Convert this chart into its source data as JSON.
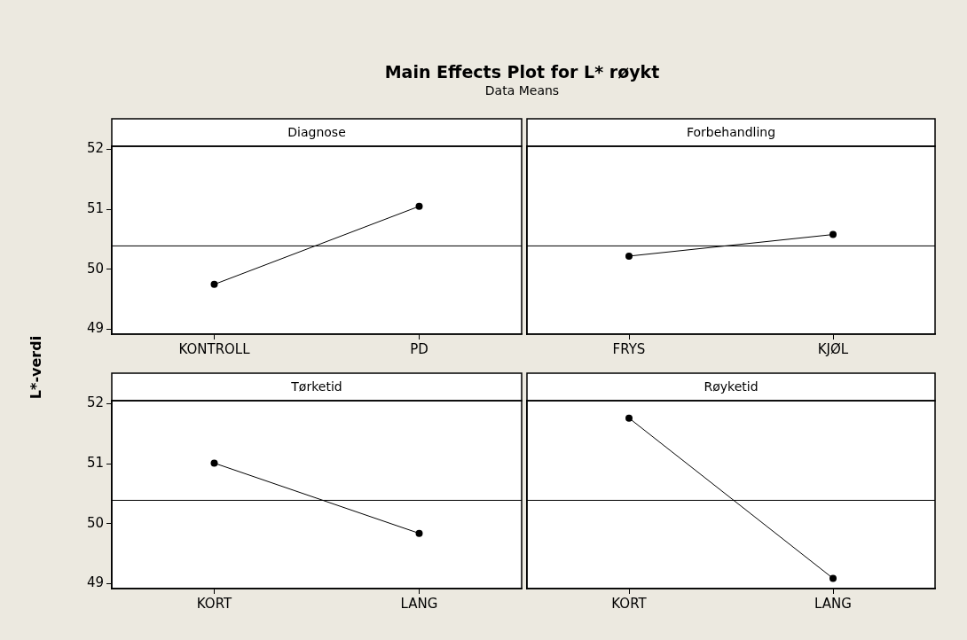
{
  "chart_data": [
    {
      "type": "other",
      "title": "Main Effects Plot for L* røykt",
      "subtitle": "Data Means"
    },
    {
      "type": "line",
      "title": "Diagnose",
      "ylabel": "L*-verdi",
      "categories": [
        "KONTROLL",
        "PD"
      ],
      "series": [
        {
          "color": "#000000",
          "values": [
            49.75,
            51.05
          ]
        }
      ],
      "ylim": [
        48.92,
        52.05
      ],
      "yticks": [
        49,
        50,
        51,
        52
      ],
      "marker": "circle",
      "line_style": "solid",
      "ref_lines": [
        {
          "axis": "y",
          "value": 50.39,
          "color": "#000000"
        }
      ]
    },
    {
      "type": "line",
      "title": "Forbehandling",
      "categories": [
        "FRYS",
        "KJØL"
      ],
      "series": [
        {
          "color": "#000000",
          "values": [
            50.22,
            50.58
          ]
        }
      ],
      "ylim": [
        48.92,
        52.05
      ],
      "yticks": [
        49,
        50,
        51,
        52
      ],
      "marker": "circle",
      "line_style": "solid",
      "tick_labels": "x",
      "ref_lines": [
        {
          "axis": "y",
          "value": 50.39,
          "color": "#000000"
        }
      ]
    },
    {
      "type": "line",
      "title": "Tørketid",
      "categories": [
        "KORT",
        "LANG"
      ],
      "series": [
        {
          "color": "#000000",
          "values": [
            51.01,
            49.84
          ]
        }
      ],
      "ylim": [
        48.92,
        52.05
      ],
      "yticks": [
        49,
        50,
        51,
        52
      ],
      "marker": "circle",
      "line_style": "solid",
      "ref_lines": [
        {
          "axis": "y",
          "value": 50.39,
          "color": "#000000"
        }
      ]
    },
    {
      "type": "line",
      "title": "Røyketid",
      "categories": [
        "KORT",
        "LANG"
      ],
      "series": [
        {
          "color": "#000000",
          "values": [
            51.76,
            49.09
          ]
        }
      ],
      "ylim": [
        48.92,
        52.05
      ],
      "yticks": [
        49,
        50,
        51,
        52
      ],
      "marker": "circle",
      "line_style": "solid",
      "tick_labels": "x",
      "ref_lines": [
        {
          "axis": "y",
          "value": 50.39,
          "color": "#000000"
        }
      ]
    }
  ]
}
